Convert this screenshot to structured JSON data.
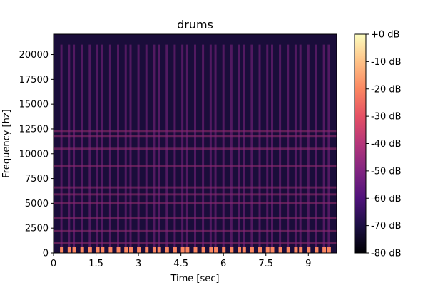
{
  "chart_data": {
    "type": "heatmap",
    "title": "drums",
    "xlabel": "Time [sec]",
    "ylabel": "Frequency [hz]",
    "xlim": [
      0,
      10
    ],
    "ylim": [
      0,
      22050
    ],
    "xticks": [
      0,
      1.5,
      3,
      4.5,
      6,
      7.5,
      9
    ],
    "xtick_labels": [
      "0",
      "1.5",
      "3",
      "4.5",
      "6",
      "7.5",
      "9"
    ],
    "yticks": [
      0,
      2500,
      5000,
      7500,
      10000,
      12500,
      15000,
      17500,
      20000
    ],
    "ytick_labels": [
      "0",
      "2500",
      "5000",
      "7500",
      "10000",
      "12500",
      "15000",
      "17500",
      "20000"
    ],
    "colorbar": {
      "range": [
        -80,
        0
      ],
      "ticks": [
        0,
        -10,
        -20,
        -30,
        -40,
        -50,
        -60,
        -70,
        -80
      ],
      "tick_labels": [
        "+0 dB",
        "-10 dB",
        "-20 dB",
        "-30 dB",
        "-40 dB",
        "-50 dB",
        "-60 dB",
        "-70 dB",
        "-80 dB"
      ],
      "colormap": "magma"
    },
    "onsets_sec": [
      0.28,
      0.55,
      0.72,
      1.0,
      1.28,
      1.55,
      1.72,
      2.0,
      2.28,
      2.55,
      2.72,
      3.0,
      3.28,
      3.55,
      3.72,
      4.0,
      4.28,
      4.55,
      4.72,
      5.0,
      5.28,
      5.55,
      5.72,
      6.0,
      6.28,
      6.55,
      6.72,
      7.0,
      7.28,
      7.55,
      7.72,
      8.0,
      8.28,
      8.55,
      8.72,
      9.0,
      9.28,
      9.55,
      9.72
    ],
    "tonal_bands_hz": [
      1000,
      2200,
      3500,
      5000,
      5900,
      6600,
      8800,
      10500,
      11800,
      12300
    ],
    "grid": false
  }
}
